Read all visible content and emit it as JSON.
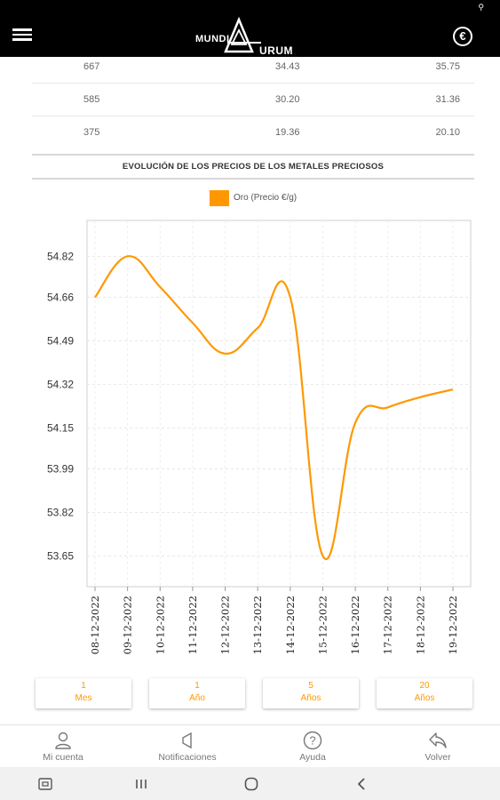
{
  "app": {
    "logo_left": "MUNDI",
    "logo_right": "URUM",
    "currency_symbol": "€"
  },
  "table": {
    "rows": [
      [
        "667",
        "34.43",
        "35.75"
      ],
      [
        "585",
        "30.20",
        "31.36"
      ],
      [
        "375",
        "19.36",
        "20.10"
      ]
    ]
  },
  "section": {
    "title": "EVOLUCIÓN DE LOS PRECIOS DE LOS METALES PRECIOSOS"
  },
  "chart_data": {
    "type": "line",
    "title": "",
    "xlabel": "",
    "ylabel": "",
    "categories": [
      "08-12-2022",
      "09-12-2022",
      "10-12-2022",
      "11-12-2022",
      "12-12-2022",
      "13-12-2022",
      "14-12-2022",
      "15-12-2022",
      "16-12-2022",
      "17-12-2022",
      "18-12-2022",
      "19-12-2022"
    ],
    "y_ticks": [
      "54.82",
      "54.66",
      "54.49",
      "54.32",
      "54.15",
      "53.99",
      "53.82",
      "53.65"
    ],
    "ylim": [
      53.53,
      54.96
    ],
    "series": [
      {
        "name": "Oro (Precio €/g)",
        "color": "#ff9800",
        "values": [
          54.66,
          54.82,
          54.7,
          54.56,
          54.44,
          54.54,
          54.66,
          53.65,
          54.17,
          54.23,
          54.27,
          54.3
        ]
      }
    ],
    "grid": true,
    "legend_position": "top"
  },
  "range_buttons": [
    {
      "line1": "1",
      "line2": "Mes"
    },
    {
      "line1": "1",
      "line2": "Año"
    },
    {
      "line1": "5",
      "line2": "Años"
    },
    {
      "line1": "20",
      "line2": "Años"
    }
  ],
  "bottom_nav": {
    "account": "Mi cuenta",
    "notifications": "Notificaciones",
    "help": "Ayuda",
    "back": "Volver"
  },
  "icons": {
    "menu": "hamburger-menu-icon",
    "currency": "euro-circle-icon",
    "account": "person-icon",
    "notifications": "megaphone-icon",
    "help": "question-circle-icon",
    "back": "reply-arrow-icon"
  }
}
